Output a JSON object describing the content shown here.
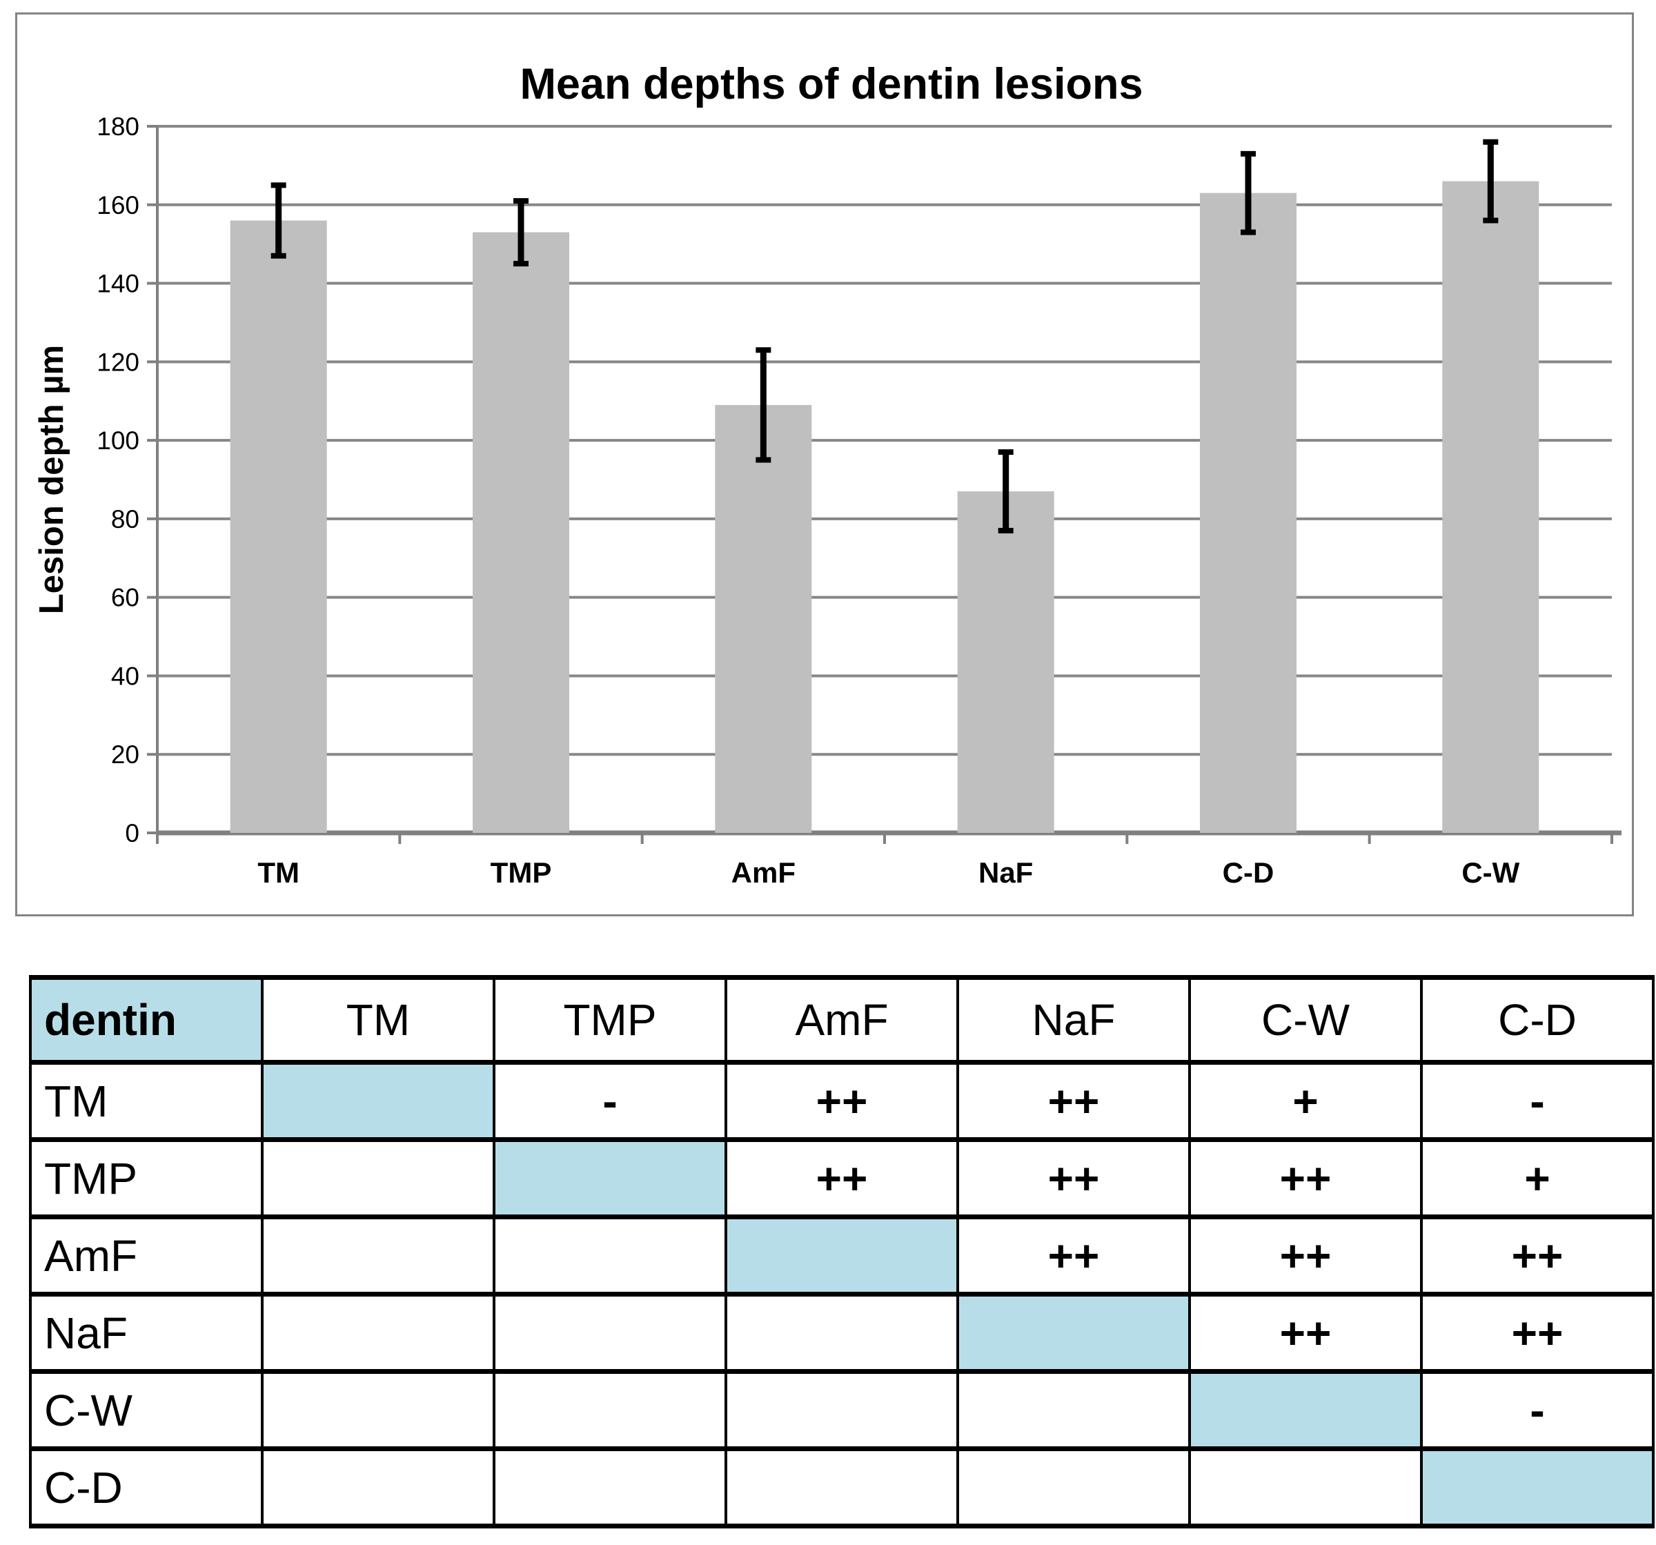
{
  "chart_data": {
    "type": "bar",
    "title": "Mean depths of dentin lesions",
    "ylabel": "Lesion depth µm",
    "xlabel": "",
    "categories": [
      "TM",
      "TMP",
      "AmF",
      "NaF",
      "C-D",
      "C-W"
    ],
    "values": [
      156,
      153,
      109,
      87,
      163,
      166
    ],
    "errors": [
      9,
      8,
      14,
      10,
      10,
      10
    ],
    "ylim": [
      0,
      180
    ],
    "yticks": [
      0,
      20,
      40,
      60,
      80,
      100,
      120,
      140,
      160,
      180
    ],
    "grid": true,
    "legend": "none",
    "bar_color": "#BFBFBF",
    "gridline_color": "#878787",
    "axis_color": "#808080",
    "error_color": "#000000"
  },
  "table": {
    "corner_label": "dentin",
    "columns": [
      "TM",
      "TMP",
      "AmF",
      "NaF",
      "C-W",
      "C-D"
    ],
    "highlight_color": "#B7DEE8",
    "rows": [
      {
        "label": "TM",
        "cells": [
          {
            "text": "",
            "hl": true
          },
          {
            "text": "-"
          },
          {
            "text": "++"
          },
          {
            "text": "++"
          },
          {
            "text": "+"
          },
          {
            "text": "-"
          }
        ]
      },
      {
        "label": "TMP",
        "cells": [
          {
            "text": ""
          },
          {
            "text": "",
            "hl": true
          },
          {
            "text": "++"
          },
          {
            "text": "++"
          },
          {
            "text": "++"
          },
          {
            "text": "+"
          }
        ]
      },
      {
        "label": "AmF",
        "cells": [
          {
            "text": ""
          },
          {
            "text": ""
          },
          {
            "text": "",
            "hl": true
          },
          {
            "text": "++"
          },
          {
            "text": "++"
          },
          {
            "text": "++"
          }
        ]
      },
      {
        "label": "NaF",
        "cells": [
          {
            "text": ""
          },
          {
            "text": ""
          },
          {
            "text": ""
          },
          {
            "text": "",
            "hl": true
          },
          {
            "text": "++"
          },
          {
            "text": "++"
          }
        ]
      },
      {
        "label": "C-W",
        "cells": [
          {
            "text": ""
          },
          {
            "text": ""
          },
          {
            "text": ""
          },
          {
            "text": ""
          },
          {
            "text": "",
            "hl": true
          },
          {
            "text": "-"
          }
        ]
      },
      {
        "label": "C-D",
        "cells": [
          {
            "text": ""
          },
          {
            "text": ""
          },
          {
            "text": ""
          },
          {
            "text": ""
          },
          {
            "text": ""
          },
          {
            "text": "",
            "hl": true
          }
        ]
      }
    ]
  }
}
